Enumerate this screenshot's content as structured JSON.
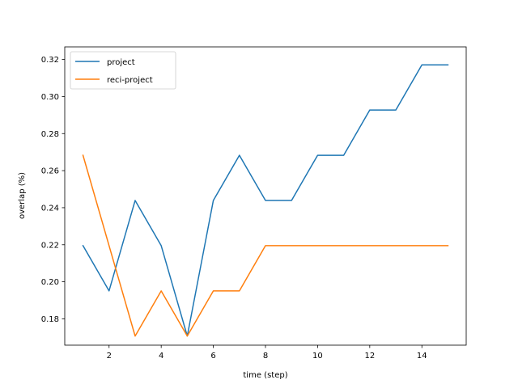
{
  "chart_data": {
    "type": "line",
    "xlabel": "time (step)",
    "ylabel": "overlap (%)",
    "xlim": [
      0.3,
      15.7
    ],
    "ylim": [
      0.1658,
      0.3268
    ],
    "xticks": [
      2,
      4,
      6,
      8,
      10,
      12,
      14
    ],
    "yticks": [
      0.18,
      0.2,
      0.22,
      0.24,
      0.26,
      0.28,
      0.3,
      0.32
    ],
    "legend_position": "top-left",
    "grid": false,
    "x": [
      1,
      2,
      3,
      4,
      5,
      6,
      7,
      8,
      9,
      10,
      11,
      12,
      13,
      14,
      15
    ],
    "series": [
      {
        "name": "project",
        "color": "#1f77b4",
        "values": [
          0.2195,
          0.1951,
          0.2439,
          0.2195,
          0.1707,
          0.2439,
          0.2683,
          0.2439,
          0.2439,
          0.2683,
          0.2683,
          0.2927,
          0.2927,
          0.3171,
          0.3171
        ]
      },
      {
        "name": "reci-project",
        "color": "#ff7f0e",
        "values": [
          0.2683,
          0.2195,
          0.1707,
          0.1951,
          0.1707,
          0.1951,
          0.1951,
          0.2195,
          0.2195,
          0.2195,
          0.2195,
          0.2195,
          0.2195,
          0.2195,
          0.2195
        ]
      }
    ]
  }
}
